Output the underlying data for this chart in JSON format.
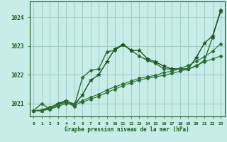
{
  "title": "Graphe pression niveau de la mer (hPa)",
  "background_color": "#c8ece8",
  "grid_color": "#a0ccc8",
  "line_color": "#1a5c20",
  "x_ticks": [
    0,
    1,
    2,
    3,
    4,
    5,
    6,
    7,
    8,
    9,
    10,
    11,
    12,
    13,
    14,
    15,
    16,
    17,
    18,
    19,
    20,
    21,
    22,
    23
  ],
  "ylim": [
    1020.55,
    1024.55
  ],
  "yticks": [
    1021,
    1022,
    1023,
    1024
  ],
  "series": [
    [
      1020.75,
      1021.0,
      1020.8,
      1020.95,
      1021.05,
      1020.9,
      1021.9,
      1022.15,
      1022.2,
      1022.8,
      1022.85,
      1023.05,
      1022.85,
      1022.65,
      1022.5,
      1022.4,
      1022.2,
      1022.2,
      1022.2,
      1022.2,
      1022.3,
      1022.5,
      1023.3,
      1024.25
    ],
    [
      1020.75,
      1020.75,
      1020.85,
      1021.0,
      1021.1,
      1020.95,
      1021.3,
      1021.8,
      1022.0,
      1022.45,
      1022.9,
      1023.05,
      1022.85,
      1022.85,
      1022.55,
      1022.45,
      1022.3,
      1022.2,
      1022.2,
      1022.2,
      1022.6,
      1023.1,
      1023.35,
      1024.2
    ],
    [
      1020.75,
      1020.75,
      1020.8,
      1020.9,
      1021.0,
      1020.95,
      1021.05,
      1021.15,
      1021.25,
      1021.38,
      1021.5,
      1021.62,
      1021.72,
      1021.82,
      1021.88,
      1021.93,
      1021.98,
      1022.05,
      1022.12,
      1022.2,
      1022.32,
      1022.45,
      1022.55,
      1022.65
    ],
    [
      1020.75,
      1020.78,
      1020.88,
      1020.97,
      1021.07,
      1021.0,
      1021.1,
      1021.22,
      1021.32,
      1021.47,
      1021.58,
      1021.68,
      1021.78,
      1021.88,
      1021.93,
      1021.98,
      1022.08,
      1022.12,
      1022.22,
      1022.32,
      1022.47,
      1022.62,
      1022.82,
      1023.08
    ]
  ],
  "line_colors": [
    "#2a6e30",
    "#1a5020",
    "#2a6e30",
    "#2a6e30"
  ],
  "markers": [
    "D",
    "*",
    "D",
    "D"
  ],
  "marker_sizes": [
    2.5,
    4.0,
    2.5,
    2.5
  ],
  "linewidths": [
    1.0,
    1.0,
    0.8,
    0.8
  ]
}
